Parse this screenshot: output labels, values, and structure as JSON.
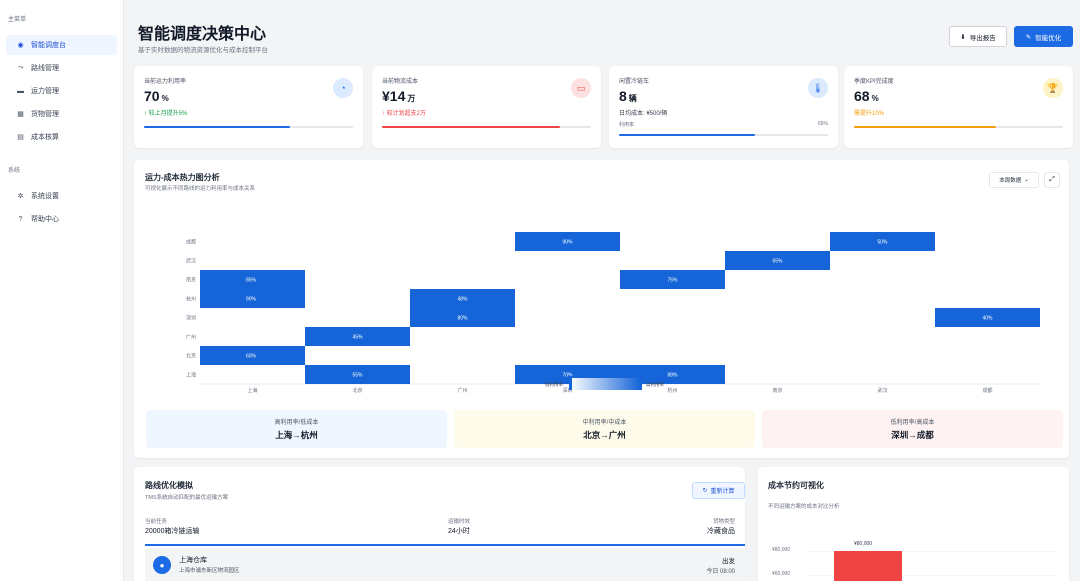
{
  "sidebar": {
    "main_section": "主菜单",
    "main_items": [
      {
        "label": "智能调度台",
        "icon": "dashboard-icon"
      },
      {
        "label": "路线管理",
        "icon": "route-icon"
      },
      {
        "label": "运力管理",
        "icon": "truck-icon"
      },
      {
        "label": "货物管理",
        "icon": "cargo-icon"
      },
      {
        "label": "成本核算",
        "icon": "document-icon"
      }
    ],
    "system_section": "系统",
    "system_items": [
      {
        "label": "系统设置",
        "icon": "gear-icon"
      },
      {
        "label": "帮助中心",
        "icon": "help-icon"
      }
    ]
  },
  "header": {
    "title": "智能调度决策中心",
    "subtitle": "基于实时数据的物流资源优化与成本控制平台",
    "export_label": "导出报告",
    "optimize_label": "智能优化"
  },
  "kpis": [
    {
      "label": "当前运力利用率",
      "value": "70",
      "unit": "%",
      "note": "↑ 较上月提升5%",
      "note_color": "#16a34a",
      "icon_bg": "#dbeafe",
      "icon_color": "#1d6ae5",
      "bar_color": "#1d6ae5",
      "progress": 0.7
    },
    {
      "label": "当前物流成本",
      "value": "¥14",
      "unit": "万",
      "note": "↑ 较计划超支2万",
      "note_color": "#ef4444",
      "icon_bg": "#fee2e2",
      "icon_color": "#ef4444",
      "bar_color": "#ef4444",
      "progress": 0.85
    },
    {
      "label": "闲置冷链车",
      "value": "8",
      "unit": "辆",
      "note": "日均成本: ¥500/辆",
      "note_color": "#374151",
      "icon_bg": "#dbeafe",
      "icon_color": "#1d6ae5",
      "util_label": "利用率",
      "util_value": "65%",
      "bar_color": "#1d6ae5",
      "progress": 0.65
    },
    {
      "label": "季度KPI完成度",
      "value": "68",
      "unit": "%",
      "note": "需提升10%",
      "note_color": "#f59e0b",
      "icon_bg": "#fef3c7",
      "icon_color": "#f59e0b",
      "bar_color": "#f59e0b",
      "progress": 0.68
    }
  ],
  "heatmap": {
    "title": "运力-成本热力图分析",
    "subtitle": "可视化展示不同路线的运力利用率与成本关系",
    "period_label": "本周数据"
  },
  "chart_data": {
    "type": "heatmap",
    "x_categories": [
      "上海",
      "北京",
      "广州",
      "深圳",
      "杭州",
      "南京",
      "武汉",
      "成都"
    ],
    "y_categories": [
      "上海",
      "北京",
      "广州",
      "深圳",
      "杭州",
      "南京",
      "武汉",
      "成都"
    ],
    "cells": [
      {
        "x": "深圳",
        "y": "成都",
        "value": "90%"
      },
      {
        "x": "武汉",
        "y": "成都",
        "value": "50%"
      },
      {
        "x": "南京",
        "y": "武汉",
        "value": "65%"
      },
      {
        "x": "上海",
        "y": "南京",
        "value": "85%"
      },
      {
        "x": "杭州",
        "y": "南京",
        "value": "75%"
      },
      {
        "x": "上海",
        "y": "杭州",
        "value": "90%"
      },
      {
        "x": "广州",
        "y": "杭州",
        "value": "48%"
      },
      {
        "x": "广州",
        "y": "深圳",
        "value": "80%"
      },
      {
        "x": "成都",
        "y": "深圳",
        "value": "40%"
      },
      {
        "x": "北京",
        "y": "广州",
        "value": "45%"
      },
      {
        "x": "上海",
        "y": "北京",
        "value": "60%"
      },
      {
        "x": "北京",
        "y": "上海",
        "value": "55%"
      },
      {
        "x": "深圳",
        "y": "上海",
        "value": "70%"
      },
      {
        "x": "杭州",
        "y": "上海",
        "value": "88%"
      }
    ],
    "legend_labels": [
      "低利用率",
      "高利用率"
    ]
  },
  "summaries": [
    {
      "label": "高利用率/低成本",
      "value": "上海→杭州",
      "bg": "#eff6ff"
    },
    {
      "label": "中利用率/中成本",
      "value": "北京→广州",
      "bg": "#fffbeb"
    },
    {
      "label": "低利用率/高成本",
      "value": "深圳→成都",
      "bg": "#fef2f2"
    }
  ],
  "route": {
    "title": "路线优化模拟",
    "subtitle": "TMS系统自动匹配的最优运输方案",
    "recalc_label": "重新计算",
    "task_label": "当前任务",
    "task_value": "20000箱冷链运输",
    "time_label": "运输时效",
    "time_value": "24小时",
    "cargo_label": "货物类型",
    "cargo_value": "冷藏食品",
    "stop_name": "上海仓库",
    "stop_address": "上海市浦东新区物流园区",
    "stop_status": "出发",
    "stop_time": "今日 08:00"
  },
  "cost_chart": {
    "title": "成本节约可视化",
    "subtitle": "不同运输方案的成本对比分析",
    "y_ticks": [
      "¥80,000",
      "¥60,000"
    ],
    "bar_label": "¥80,000",
    "bar_color": "#f04444"
  },
  "colors": {
    "accent": "#1d6ae5",
    "heat_cell": "#1565d8"
  }
}
